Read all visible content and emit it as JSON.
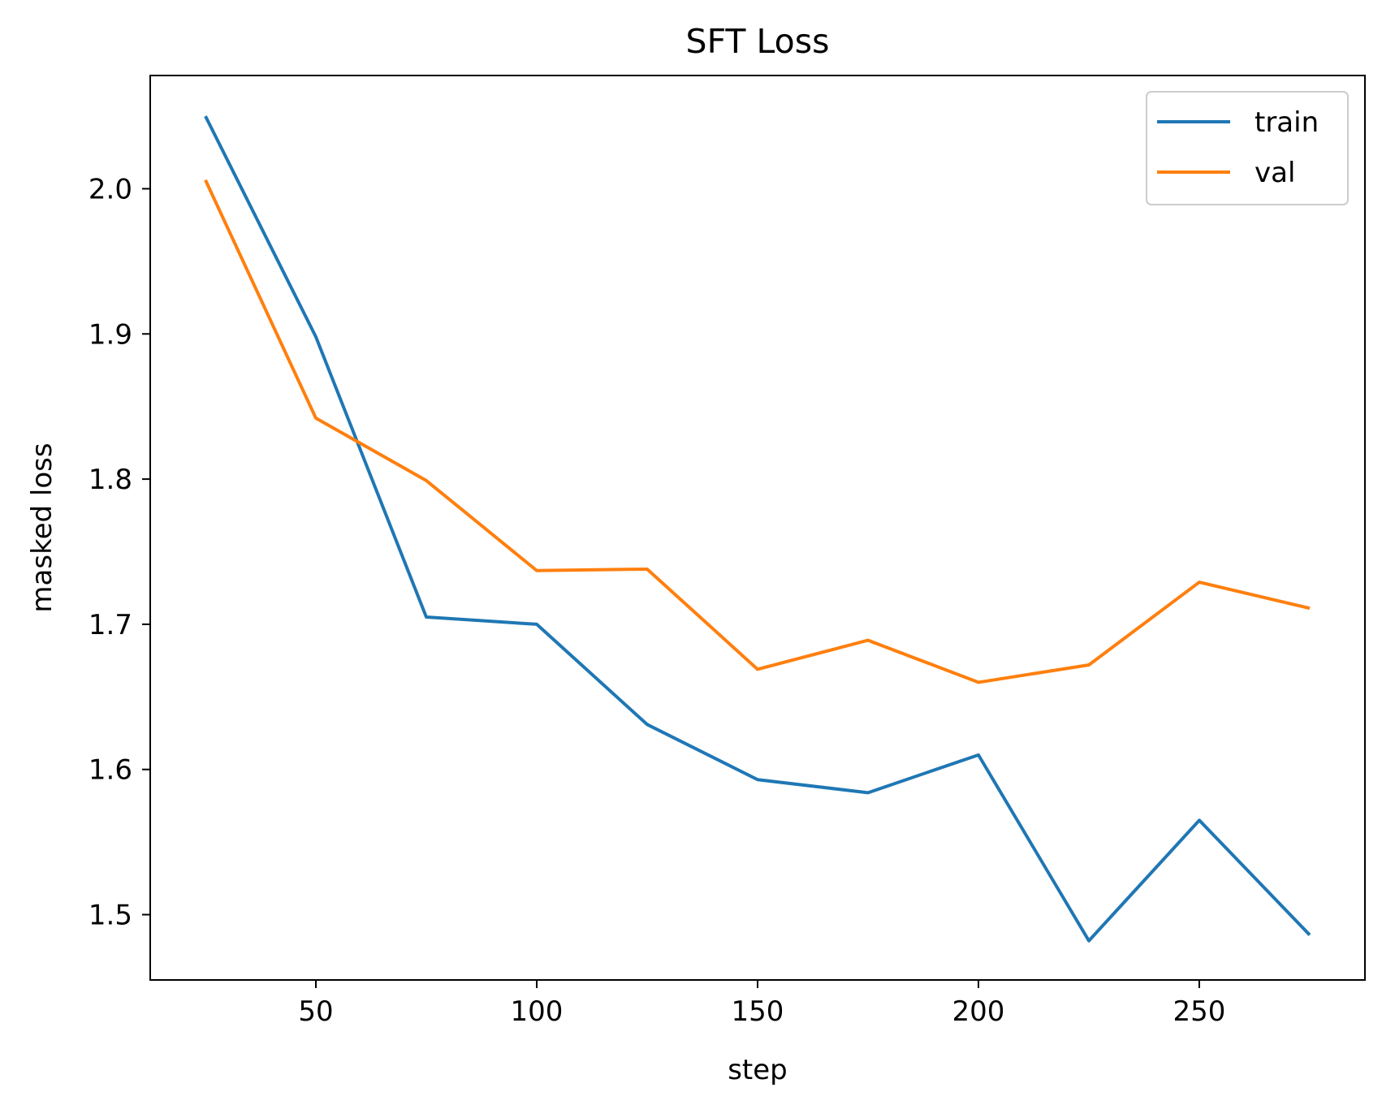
{
  "chart_data": {
    "type": "line",
    "title": "SFT Loss",
    "xlabel": "step",
    "ylabel": "masked loss",
    "x": [
      25,
      50,
      75,
      100,
      125,
      150,
      175,
      200,
      225,
      250,
      275
    ],
    "xlim": [
      12.5,
      287.5
    ],
    "ylim": [
      1.455,
      2.078
    ],
    "xticks": [
      50,
      100,
      150,
      200,
      250
    ],
    "yticks": [
      1.5,
      1.6,
      1.7,
      1.8,
      1.9,
      2.0
    ],
    "xtick_labels": [
      "50",
      "100",
      "150",
      "200",
      "250"
    ],
    "ytick_labels": [
      "1.5",
      "1.6",
      "1.7",
      "1.8",
      "1.9",
      "2.0"
    ],
    "grid": false,
    "legend_position": "top-right",
    "series": [
      {
        "name": "train",
        "color": "#1f77b4",
        "values": [
          2.05,
          1.898,
          1.705,
          1.7,
          1.631,
          1.593,
          1.584,
          1.61,
          1.482,
          1.565,
          1.486
        ]
      },
      {
        "name": "val",
        "color": "#ff7f0e",
        "values": [
          2.006,
          1.842,
          1.799,
          1.737,
          1.738,
          1.669,
          1.689,
          1.66,
          1.672,
          1.729,
          1.711
        ]
      }
    ]
  }
}
